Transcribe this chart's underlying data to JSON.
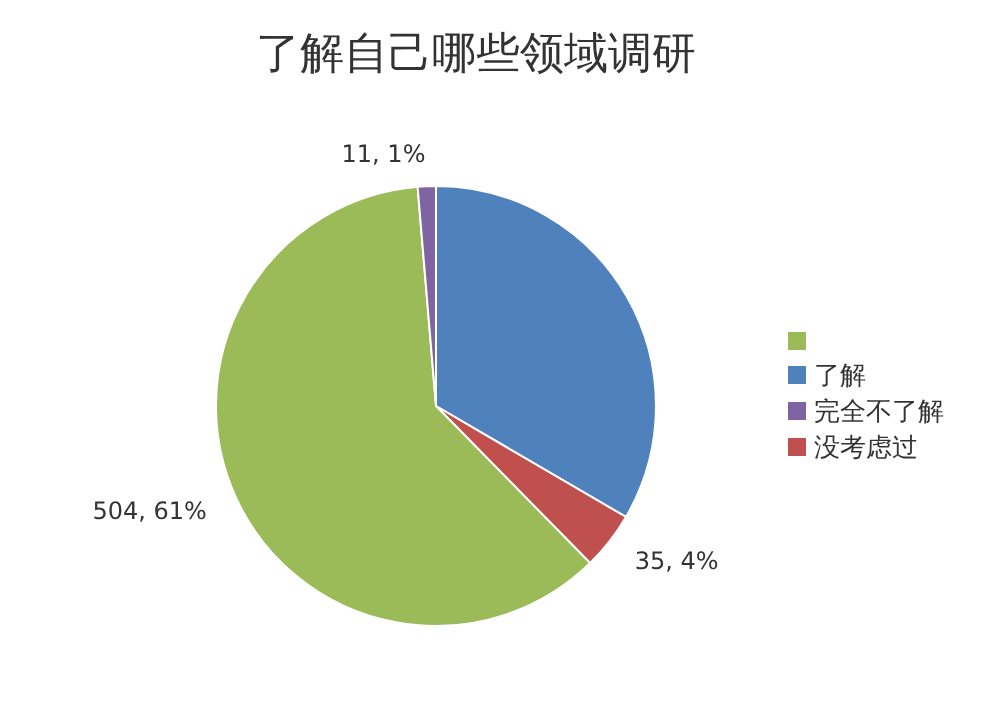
{
  "chart_data": {
    "type": "pie",
    "title": "了解自己哪些领域调研",
    "categories": [
      "了解",
      "没考虑过",
      null,
      "完全不了解"
    ],
    "values": [
      276,
      35,
      504,
      11
    ],
    "colors": [
      "#4f81bd",
      "#c0504d",
      "#9bbb59",
      "#8064a2"
    ],
    "value_labels": [
      null,
      "35, 4%",
      "504, 61%",
      "11, 1%"
    ],
    "legend": "right"
  }
}
